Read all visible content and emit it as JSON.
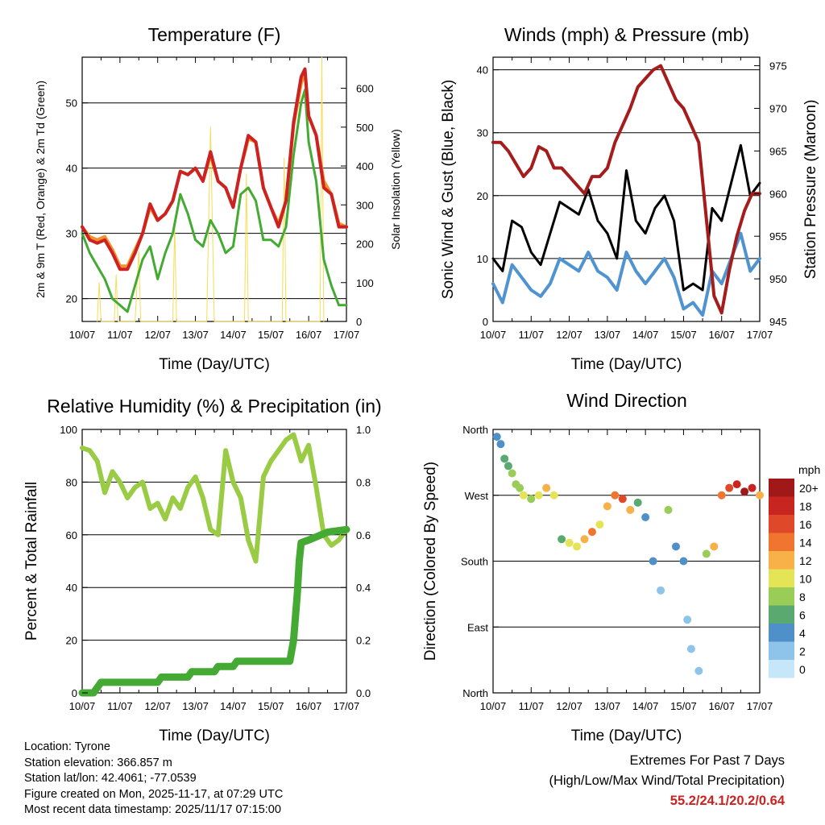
{
  "time_ticks": [
    "10/07",
    "11/07",
    "12/07",
    "13/07",
    "14/07",
    "15/07",
    "16/07",
    "17/07"
  ],
  "time_label": "Time (Day/UTC)",
  "colors": {
    "temp2m": "#cc2222",
    "temp9m": "#f5922d",
    "dew": "#44aa33",
    "solar": "#f5dd55",
    "gust": "#000000",
    "wind": "#4f94d0",
    "pressure": "#a51c1c",
    "rh": "#99cc44",
    "precip": "#44aa33"
  },
  "chart_data": [
    {
      "type": "line",
      "title": "Temperature (F)",
      "ylabel_left": "2m & 9m T (Red, Orange) & 2m Td (Green)",
      "ylabel_right": "Solar Insolation (Yellow)",
      "xlabel": "Time (Day/UTC)",
      "ylim": [
        16.5,
        57
      ],
      "y2lim": [
        0,
        680
      ],
      "yticks": [
        20,
        30,
        40,
        50
      ],
      "y2ticks": [
        0,
        100,
        200,
        300,
        400,
        500,
        600
      ],
      "series": [
        {
          "name": "2m T",
          "color": "#cc2222",
          "axis": "left",
          "x": [
            0,
            0.2,
            0.4,
            0.6,
            0.8,
            1,
            1.2,
            1.4,
            1.6,
            1.8,
            2,
            2.2,
            2.4,
            2.6,
            2.8,
            3,
            3.2,
            3.4,
            3.6,
            3.8,
            4,
            4.2,
            4.4,
            4.6,
            4.8,
            5,
            5.2,
            5.4,
            5.6,
            5.8,
            5.9,
            6,
            6.2,
            6.4,
            6.6,
            6.8,
            7
          ],
          "y": [
            31,
            29,
            28.5,
            29,
            27,
            24.5,
            24.5,
            27,
            30,
            34.5,
            32,
            33,
            35,
            39.5,
            39,
            40,
            38,
            42.5,
            38,
            37,
            34,
            40,
            45,
            44,
            37,
            34,
            31,
            35,
            47,
            54,
            55.2,
            48,
            45,
            37,
            36,
            31,
            31
          ]
        },
        {
          "name": "9m T",
          "color": "#f5922d",
          "axis": "left",
          "x": [
            0,
            0.2,
            0.4,
            0.6,
            0.8,
            1,
            1.2,
            1.4,
            1.6,
            1.8,
            2,
            2.2,
            2.4,
            2.6,
            2.8,
            3,
            3.2,
            3.4,
            3.6,
            3.8,
            4,
            4.2,
            4.4,
            4.6,
            4.8,
            5,
            5.2,
            5.4,
            5.6,
            5.8,
            5.9,
            6,
            6.2,
            6.4,
            6.6,
            6.8,
            7
          ],
          "y": [
            31,
            29.5,
            29,
            29.5,
            27.5,
            25,
            25,
            27.5,
            30,
            34,
            32,
            33,
            35,
            39.5,
            39,
            40,
            38,
            42,
            38,
            37,
            34,
            40,
            44.5,
            44,
            37,
            34,
            31.5,
            35,
            46.5,
            53,
            54.5,
            48,
            45,
            38,
            36,
            31.5,
            31
          ]
        },
        {
          "name": "2m Td",
          "color": "#44aa33",
          "axis": "left",
          "x": [
            0,
            0.2,
            0.4,
            0.6,
            0.8,
            1,
            1.2,
            1.4,
            1.6,
            1.8,
            2,
            2.2,
            2.4,
            2.6,
            2.8,
            3,
            3.2,
            3.4,
            3.6,
            3.8,
            4,
            4.2,
            4.4,
            4.6,
            4.8,
            5,
            5.2,
            5.4,
            5.6,
            5.8,
            5.9,
            6,
            6.2,
            6.4,
            6.6,
            6.8,
            7
          ],
          "y": [
            30,
            27,
            25,
            23,
            20,
            19,
            18,
            22,
            26,
            28,
            23,
            27,
            30,
            36,
            33,
            29,
            28,
            32,
            30,
            27,
            28,
            36,
            37,
            35,
            29,
            29,
            28,
            31,
            42,
            50,
            52,
            44,
            38,
            26,
            22,
            19,
            19
          ]
        },
        {
          "name": "Solar Insolation",
          "color": "#f5dd55",
          "axis": "right",
          "x": [
            0.4,
            0.45,
            0.5,
            0.85,
            0.9,
            0.95,
            1.4,
            1.5,
            1.55,
            2.4,
            2.45,
            2.5,
            3.3,
            3.4,
            3.5,
            4.3,
            4.35,
            4.4,
            5.3,
            5.35,
            5.4,
            6.3,
            6.35,
            6.4
          ],
          "y": [
            0,
            100,
            0,
            0,
            120,
            0,
            0,
            180,
            0,
            0,
            250,
            0,
            0,
            500,
            0,
            0,
            380,
            0,
            0,
            420,
            0,
            0,
            680,
            0
          ]
        }
      ]
    },
    {
      "type": "line",
      "title": "Winds (mph) & Pressure (mb)",
      "ylabel_left": "Sonic Wind & Gust (Blue, Black)",
      "ylabel_right": "Station Pressure (Maroon)",
      "xlabel": "Time (Day/UTC)",
      "ylim": [
        0,
        42
      ],
      "y2lim": [
        945,
        976
      ],
      "yticks": [
        0,
        10,
        20,
        30,
        40
      ],
      "y2ticks": [
        945,
        950,
        955,
        960,
        965,
        970,
        975
      ],
      "series": [
        {
          "name": "Sonic Wind",
          "color": "#4f94d0",
          "axis": "left",
          "x": [
            0,
            0.25,
            0.5,
            0.75,
            1,
            1.25,
            1.5,
            1.75,
            2,
            2.25,
            2.5,
            2.75,
            3,
            3.25,
            3.5,
            3.75,
            4,
            4.25,
            4.5,
            4.75,
            5,
            5.25,
            5.5,
            5.75,
            6,
            6.25,
            6.5,
            6.75,
            7
          ],
          "y": [
            6,
            3,
            9,
            7,
            5,
            4,
            6,
            10,
            9,
            8,
            11,
            8,
            7,
            5,
            11,
            8,
            6,
            8,
            10,
            7,
            2,
            3,
            1,
            8,
            6,
            10,
            14,
            8,
            10
          ]
        },
        {
          "name": "Gust",
          "color": "#000000",
          "axis": "left",
          "x": [
            0,
            0.25,
            0.5,
            0.75,
            1,
            1.25,
            1.5,
            1.75,
            2,
            2.25,
            2.5,
            2.75,
            3,
            3.25,
            3.5,
            3.75,
            4,
            4.25,
            4.5,
            4.75,
            5,
            5.25,
            5.5,
            5.75,
            6,
            6.25,
            6.5,
            6.75,
            7
          ],
          "y": [
            10,
            8,
            16,
            15,
            11,
            9,
            14,
            19,
            18,
            17,
            21,
            16,
            14,
            10,
            24,
            16,
            14,
            18,
            20,
            16,
            5,
            6,
            5,
            18,
            16,
            22,
            28,
            20,
            22
          ]
        },
        {
          "name": "Station Pressure",
          "color": "#a51c1c",
          "axis": "right",
          "x": [
            0,
            0.2,
            0.4,
            0.6,
            0.8,
            1,
            1.2,
            1.4,
            1.6,
            1.8,
            2,
            2.2,
            2.4,
            2.6,
            2.8,
            3,
            3.2,
            3.4,
            3.6,
            3.8,
            4,
            4.2,
            4.4,
            4.6,
            4.8,
            5,
            5.2,
            5.4,
            5.6,
            5.8,
            6,
            6.2,
            6.4,
            6.6,
            6.8,
            7
          ],
          "y": [
            966,
            966,
            965,
            963.5,
            962,
            963,
            965.5,
            965,
            963,
            963,
            962,
            961,
            960,
            962,
            962,
            963,
            966,
            968,
            970,
            972.5,
            973.5,
            974.5,
            975,
            973,
            971,
            970,
            968,
            966,
            957,
            948,
            946,
            951,
            955,
            958,
            960,
            960
          ]
        }
      ]
    },
    {
      "type": "line",
      "title": "Relative Humidity (%) & Precipitation (in)",
      "ylabel_left": "Percent & Total Rainfall",
      "xlabel": "Time (Day/UTC)",
      "ylim": [
        0,
        100
      ],
      "y2lim": [
        0,
        1.0
      ],
      "yticks": [
        0,
        20,
        40,
        60,
        80,
        100
      ],
      "y2ticks": [
        0.0,
        0.2,
        0.4,
        0.6,
        0.8,
        1.0
      ],
      "series": [
        {
          "name": "Relative Humidity",
          "color": "#99cc44",
          "axis": "left",
          "x": [
            0,
            0.2,
            0.4,
            0.6,
            0.8,
            1,
            1.2,
            1.4,
            1.6,
            1.8,
            2,
            2.2,
            2.4,
            2.6,
            2.8,
            3,
            3.2,
            3.4,
            3.6,
            3.8,
            4,
            4.2,
            4.4,
            4.6,
            4.8,
            5,
            5.2,
            5.4,
            5.6,
            5.8,
            6,
            6.2,
            6.4,
            6.6,
            6.8,
            7
          ],
          "y": [
            93,
            92,
            88,
            76,
            84,
            80,
            74,
            78,
            80,
            70,
            72,
            66,
            74,
            70,
            78,
            82,
            74,
            62,
            60,
            92,
            80,
            74,
            58,
            50,
            82,
            88,
            92,
            96,
            98,
            88,
            94,
            78,
            60,
            56,
            58,
            62
          ]
        },
        {
          "name": "Total Precipitation",
          "color": "#44aa33",
          "axis": "right",
          "x": [
            0,
            0.3,
            0.4,
            0.5,
            1,
            2,
            2.1,
            2.8,
            2.9,
            3.5,
            3.6,
            4,
            4.1,
            5.5,
            5.6,
            5.7,
            5.75,
            5.8,
            6,
            6.5,
            7
          ],
          "y": [
            0,
            0,
            0.02,
            0.04,
            0.04,
            0.04,
            0.06,
            0.06,
            0.08,
            0.08,
            0.1,
            0.1,
            0.12,
            0.12,
            0.2,
            0.38,
            0.5,
            0.57,
            0.58,
            0.61,
            0.62
          ]
        }
      ]
    },
    {
      "type": "scatter",
      "title": "Wind Direction",
      "ylabel_left": "Direction (Colored By Speed)",
      "xlabel": "Time (Day/UTC)",
      "ylim": [
        0,
        360
      ],
      "ytick_labels": [
        {
          "deg": 0,
          "label": "North"
        },
        {
          "deg": 90,
          "label": "East"
        },
        {
          "deg": 180,
          "label": "South"
        },
        {
          "deg": 270,
          "label": "West"
        },
        {
          "deg": 360,
          "label": "North"
        }
      ],
      "points": [
        [
          0.1,
          350,
          3
        ],
        [
          0.2,
          340,
          4
        ],
        [
          0.3,
          320,
          6
        ],
        [
          0.4,
          310,
          5
        ],
        [
          0.5,
          300,
          7
        ],
        [
          0.6,
          285,
          8
        ],
        [
          0.7,
          280,
          7
        ],
        [
          0.8,
          270,
          9
        ],
        [
          1,
          265,
          8
        ],
        [
          1.2,
          270,
          9
        ],
        [
          1.4,
          280,
          11
        ],
        [
          1.6,
          270,
          10
        ],
        [
          1.8,
          210,
          6
        ],
        [
          2,
          205,
          9
        ],
        [
          2.2,
          200,
          10
        ],
        [
          2.4,
          210,
          12
        ],
        [
          2.6,
          220,
          13
        ],
        [
          2.8,
          230,
          10
        ],
        [
          3,
          255,
          12
        ],
        [
          3.2,
          270,
          14
        ],
        [
          3.4,
          265,
          15
        ],
        [
          3.6,
          250,
          12
        ],
        [
          3.8,
          260,
          6
        ],
        [
          4,
          240,
          4
        ],
        [
          4.2,
          180,
          3
        ],
        [
          4.4,
          140,
          2
        ],
        [
          4.6,
          250,
          7
        ],
        [
          4.8,
          200,
          4
        ],
        [
          5,
          180,
          3
        ],
        [
          5.1,
          100,
          1
        ],
        [
          5.2,
          60,
          2
        ],
        [
          5.4,
          30,
          1
        ],
        [
          5.6,
          190,
          8
        ],
        [
          5.8,
          200,
          12
        ],
        [
          6,
          270,
          13
        ],
        [
          6.2,
          280,
          16
        ],
        [
          6.4,
          285,
          18
        ],
        [
          6.6,
          275,
          19
        ],
        [
          6.8,
          280,
          17
        ],
        [
          7,
          270,
          12
        ]
      ],
      "legend": {
        "unit": "mph",
        "levels": [
          "0",
          "2",
          "4",
          "6",
          "8",
          "10",
          "12",
          "14",
          "16",
          "18",
          "20+"
        ]
      }
    }
  ],
  "info": {
    "location": "Location: Tyrone",
    "elevation": "Station elevation: 366.857 m",
    "latlon": "Station lat/lon: 42.4061; -77.0539",
    "created": "Figure created on Mon, 2025-11-17, at 07:29 UTC",
    "recent": "Most recent data timestamp: 2025/11/17 07:15:00"
  },
  "extremes": {
    "title": "Extremes For Past 7 Days",
    "subtitle": "(High/Low/Max Wind/Total Precipitation)",
    "values": "55.2/24.1/20.2/0.64"
  }
}
